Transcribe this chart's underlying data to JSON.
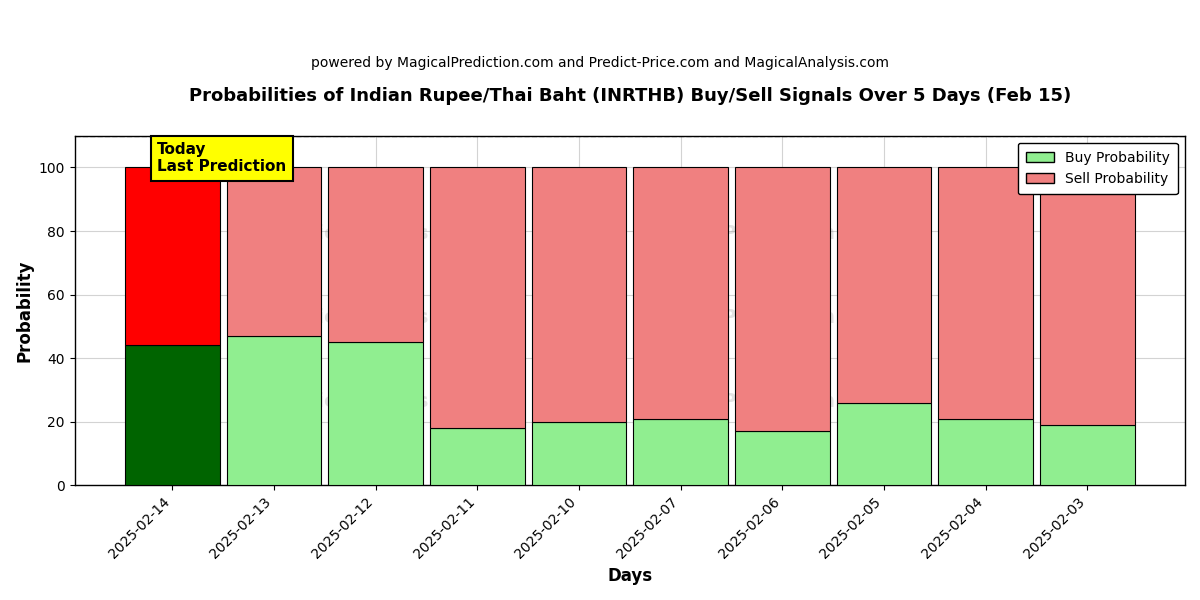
{
  "title": "Probabilities of Indian Rupee/Thai Baht (INRTHB) Buy/Sell Signals Over 5 Days (Feb 15)",
  "subtitle": "powered by MagicalPrediction.com and Predict-Price.com and MagicalAnalysis.com",
  "xlabel": "Days",
  "ylabel": "Probability",
  "categories": [
    "2025-02-14",
    "2025-02-13",
    "2025-02-12",
    "2025-02-11",
    "2025-02-10",
    "2025-02-07",
    "2025-02-06",
    "2025-02-05",
    "2025-02-04",
    "2025-02-03"
  ],
  "buy_values": [
    44,
    47,
    45,
    18,
    20,
    21,
    17,
    26,
    21,
    19
  ],
  "sell_values": [
    56,
    53,
    55,
    82,
    80,
    79,
    83,
    74,
    79,
    81
  ],
  "today_buy_color": "#006400",
  "today_sell_color": "#FF0000",
  "buy_color": "#90EE90",
  "sell_color": "#F08080",
  "today_label_bg": "#FFFF00",
  "ylim": [
    0,
    110
  ],
  "yticks": [
    0,
    20,
    40,
    60,
    80,
    100
  ],
  "dashed_line_y": 110,
  "bar_width": 0.93,
  "figsize": [
    12.0,
    6.0
  ],
  "dpi": 100
}
